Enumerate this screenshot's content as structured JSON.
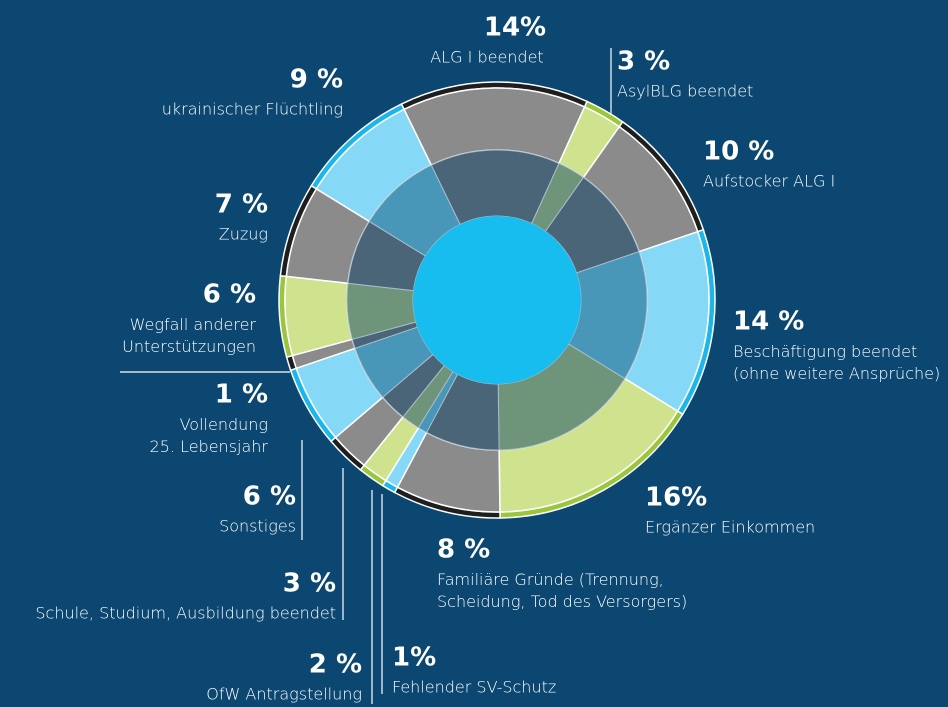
{
  "chart_data": {
    "type": "pie",
    "categories": [
      "ALG I beendet",
      "AsylBLG beendet",
      "Aufstocker ALG I",
      "Beschäftigung beendet\n(ohne weitere Ansprüche)",
      "Ergänzer Einkommen",
      "Familiäre Gründe (Trennung,\nScheidung, Tod des Versorgers)",
      "Fehlender SV-Schutz",
      "OfW Antragstellung",
      "Schule, Studium, Ausbildung beendet",
      "Sonstiges",
      "Vollendung\n25. Lebensjahr",
      "Wegfall anderer\nUnterstützungen",
      "Zuzug",
      "ukrainischer Flüchtling"
    ],
    "values": [
      14,
      3,
      10,
      14,
      16,
      8,
      1,
      2,
      3,
      6,
      1,
      6,
      7,
      9
    ],
    "value_labels": [
      "14%",
      "3 %",
      "10 %",
      "14 %",
      "16%",
      "8 %",
      "1%",
      "2 %",
      "3 %",
      "6 %",
      "1 %",
      "6 %",
      "7 %",
      "9 %"
    ],
    "colors": [
      "#8b8b8b",
      "#cfe38f",
      "#8b8b8b",
      "#86d9f6",
      "#cfe38f",
      "#8b8b8b",
      "#86d9f6",
      "#cfe38f",
      "#8b8b8b",
      "#86d9f6",
      "#8b8b8b",
      "#cfe38f",
      "#8b8b8b",
      "#86d9f6"
    ]
  }
}
